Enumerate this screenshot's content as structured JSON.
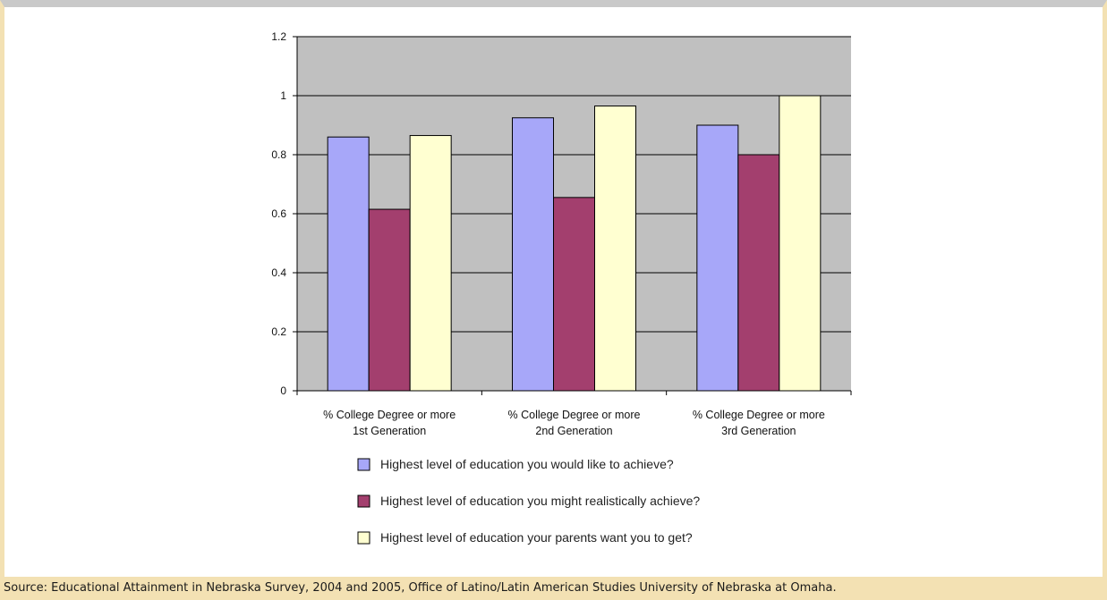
{
  "chart_data": {
    "type": "bar",
    "title": "",
    "xlabel": "",
    "ylabel": "",
    "ylim": [
      0,
      1.2
    ],
    "yticks": [
      0,
      0.2,
      0.4,
      0.6,
      0.8,
      1,
      1.2
    ],
    "ytick_labels": [
      "0",
      "0.2",
      "0.4",
      "0.6",
      "0.8",
      "1",
      "1.2"
    ],
    "categories": [
      [
        "% College Degree or more",
        "1st Generation"
      ],
      [
        "% College Degree or more",
        "2nd Generation"
      ],
      [
        "% College Degree or more",
        "3rd Generation"
      ]
    ],
    "series": [
      {
        "name": "Highest level of education you would like to achieve?",
        "color": "#a7a7f9",
        "values": [
          0.86,
          0.925,
          0.9
        ]
      },
      {
        "name": "Highest level of education you might realistically achieve?",
        "color": "#a33f6e",
        "values": [
          0.615,
          0.655,
          0.8
        ]
      },
      {
        "name": "Highest level of education your parents want you to get?",
        "color": "#ffffd1",
        "values": [
          0.865,
          0.965,
          1.0
        ]
      }
    ],
    "grid": true,
    "plot_background": "#c0c0c0",
    "legend_position": "bottom"
  },
  "source_text": "Source: Educational Attainment in Nebraska Survey, 2004 and 2005, Office of Latino/Latin American Studies University of Nebraska at Omaha."
}
